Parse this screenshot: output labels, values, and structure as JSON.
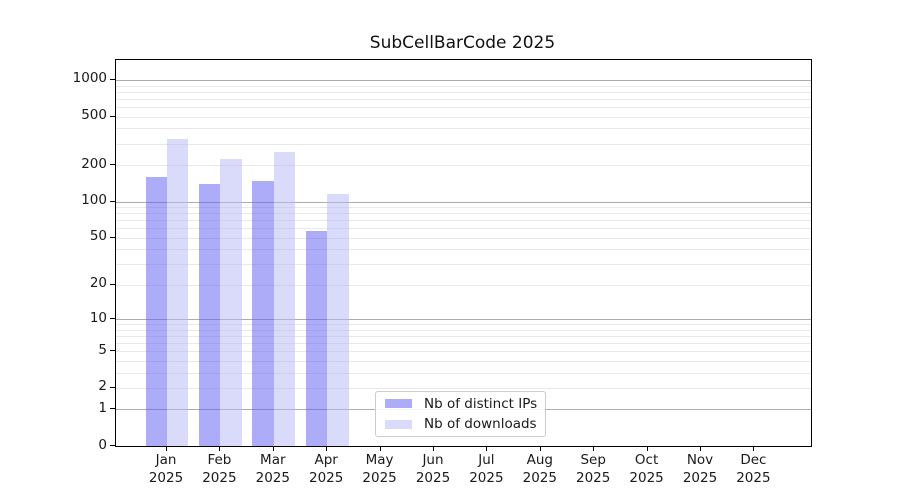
{
  "title": "SubCellBarCode 2025",
  "chart_data": {
    "type": "bar",
    "title": "SubCellBarCode 2025",
    "xlabel": "",
    "ylabel": "",
    "categories": [
      "Jan",
      "Feb",
      "Mar",
      "Apr",
      "May",
      "Jun",
      "Jul",
      "Aug",
      "Sep",
      "Oct",
      "Nov",
      "Dec"
    ],
    "year_label": "2025",
    "series": [
      {
        "name": "Nb of distinct IPs",
        "color": "rgba(89,89,241,0.5)",
        "values": [
          160,
          140,
          148,
          57,
          0,
          0,
          0,
          0,
          0,
          0,
          0,
          0
        ]
      },
      {
        "name": "Nb of downloads",
        "color": "rgba(181,181,245,0.5)",
        "values": [
          330,
          225,
          256,
          115,
          0,
          0,
          0,
          0,
          0,
          0,
          0,
          0
        ]
      }
    ],
    "yticks": [
      0,
      1,
      2,
      5,
      10,
      20,
      50,
      100,
      200,
      500,
      1000
    ],
    "scale": "log10(1+y)",
    "ylim": [
      0,
      1440
    ],
    "grid": "on",
    "gridline_major_color": "#adadad",
    "gridline_minor_color": "#e9e9e9",
    "legend_position": "lower center"
  }
}
